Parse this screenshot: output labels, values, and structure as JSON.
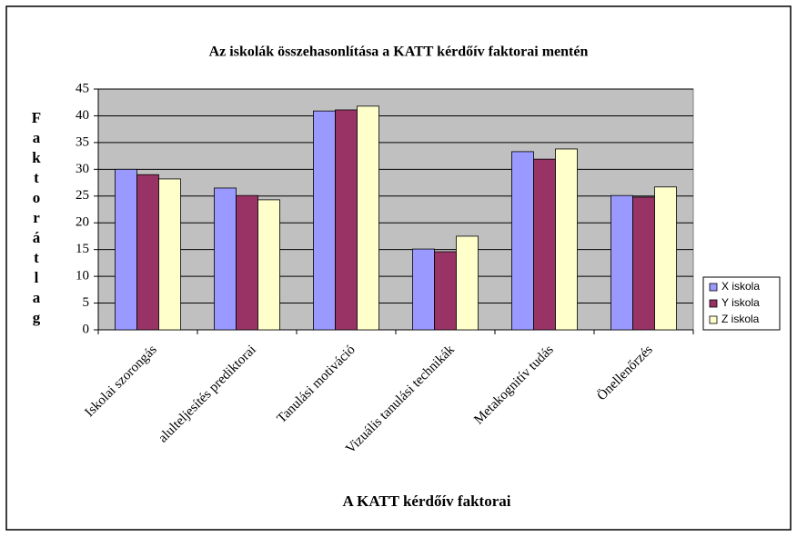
{
  "chart_data": {
    "type": "bar",
    "title": "Az iskolák összehasonlítása a KATT kérdőív faktorai mentén",
    "x_label": "A KATT kérdőív faktorai",
    "y_label": "Faktorátlag",
    "categories": [
      "Iskolai szorongás",
      "alulteljesítés prediktorai",
      "Tanulási motiváció",
      "Vizuális tanulási technikák",
      "Metakognitív tudás",
      "Önellenőrzés"
    ],
    "series": [
      {
        "name": "X iskola",
        "color": "#9999ff",
        "values": [
          30.0,
          26.5,
          40.9,
          15.1,
          33.3,
          25.1
        ]
      },
      {
        "name": "Y iskola",
        "color": "#993366",
        "values": [
          29.0,
          25.1,
          41.1,
          14.6,
          31.9,
          24.8
        ]
      },
      {
        "name": "Z iskola",
        "color": "#ffffcc",
        "values": [
          28.2,
          24.3,
          41.8,
          17.5,
          33.8,
          26.7
        ]
      }
    ],
    "ylim": [
      0,
      45
    ],
    "yticks": [
      0,
      5,
      10,
      15,
      20,
      25,
      30,
      35,
      40,
      45
    ],
    "grid": true,
    "plot_background": "#c0c0c0",
    "legend": "right"
  }
}
